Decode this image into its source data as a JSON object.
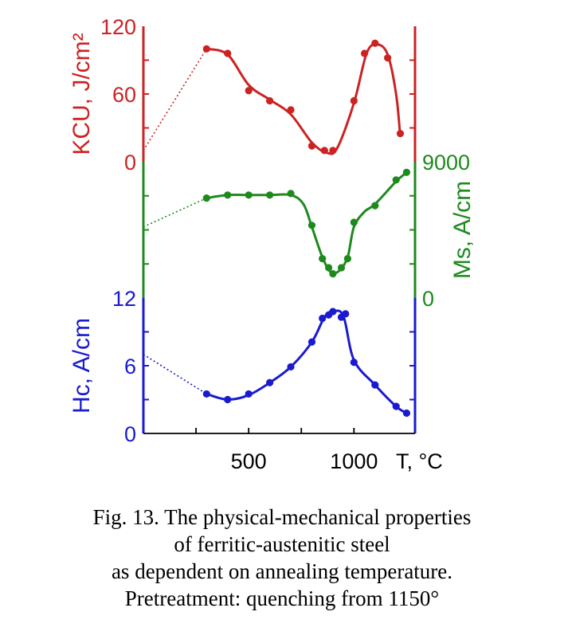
{
  "chart_data": {
    "type": "line",
    "x_axis": {
      "tick_labels": [
        "500",
        "1000"
      ],
      "ticks": [
        500,
        1000
      ],
      "minor_ticks": [
        250,
        500,
        750,
        1000
      ],
      "label": "T, °C",
      "xlim": [
        0,
        1290
      ]
    },
    "panels": [
      {
        "id": "kcu",
        "ylabel": "KCU, J/cm²",
        "ylim": [
          0,
          120
        ],
        "tick_labels": [
          "0",
          "60",
          "120"
        ],
        "ticks": [
          0,
          60,
          120
        ],
        "color": "#cc2222",
        "axis_side": "left",
        "points": [
          [
            300,
            100
          ],
          [
            400,
            96
          ],
          [
            500,
            63
          ],
          [
            600,
            54
          ],
          [
            700,
            46
          ],
          [
            800,
            14
          ],
          [
            860,
            10
          ],
          [
            900,
            10
          ],
          [
            1000,
            54
          ],
          [
            1050,
            96
          ],
          [
            1100,
            105
          ],
          [
            1160,
            92
          ],
          [
            1220,
            25
          ]
        ],
        "curve": [
          [
            300,
            100
          ],
          [
            400,
            95
          ],
          [
            500,
            68
          ],
          [
            600,
            55
          ],
          [
            700,
            42
          ],
          [
            800,
            17
          ],
          [
            870,
            8
          ],
          [
            920,
            12
          ],
          [
            1000,
            52
          ],
          [
            1060,
            96
          ],
          [
            1110,
            104
          ],
          [
            1160,
            95
          ],
          [
            1200,
            60
          ],
          [
            1220,
            22
          ]
        ],
        "extrapolation": [
          [
            0,
            10
          ],
          [
            300,
            100
          ]
        ]
      },
      {
        "id": "ms",
        "ylabel": "Ms, A/cm",
        "ylim": [
          0,
          9000
        ],
        "tick_labels": [
          "0",
          "9000"
        ],
        "ticks": [
          0,
          9000
        ],
        "color": "#1e8a1e",
        "axis_side": "right",
        "points": [
          [
            300,
            6600
          ],
          [
            400,
            6800
          ],
          [
            500,
            6800
          ],
          [
            600,
            6800
          ],
          [
            700,
            6900
          ],
          [
            800,
            4800
          ],
          [
            850,
            2600
          ],
          [
            880,
            2000
          ],
          [
            900,
            1600
          ],
          [
            940,
            2000
          ],
          [
            970,
            2600
          ],
          [
            1000,
            5000
          ],
          [
            1100,
            6100
          ],
          [
            1200,
            7800
          ],
          [
            1250,
            8300
          ]
        ],
        "curve": [
          [
            300,
            6600
          ],
          [
            400,
            6800
          ],
          [
            500,
            6800
          ],
          [
            600,
            6800
          ],
          [
            700,
            6800
          ],
          [
            760,
            6200
          ],
          [
            800,
            4700
          ],
          [
            850,
            2700
          ],
          [
            890,
            1700
          ],
          [
            930,
            1800
          ],
          [
            970,
            2700
          ],
          [
            1000,
            4700
          ],
          [
            1050,
            5700
          ],
          [
            1100,
            6200
          ],
          [
            1200,
            7700
          ],
          [
            1250,
            8300
          ]
        ],
        "extrapolation": [
          [
            0,
            4700
          ],
          [
            300,
            6600
          ]
        ]
      },
      {
        "id": "hc",
        "ylabel": "Hc, A/cm",
        "ylim": [
          0,
          12
        ],
        "tick_labels": [
          "0",
          "6",
          "12"
        ],
        "ticks": [
          0,
          6,
          12
        ],
        "color": "#1a1ad0",
        "axis_side": "left",
        "points": [
          [
            300,
            3.5
          ],
          [
            400,
            3.0
          ],
          [
            500,
            3.5
          ],
          [
            600,
            4.5
          ],
          [
            700,
            5.9
          ],
          [
            800,
            8.1
          ],
          [
            850,
            10.2
          ],
          [
            880,
            10.5
          ],
          [
            900,
            10.8
          ],
          [
            940,
            10.3
          ],
          [
            960,
            10.6
          ],
          [
            1000,
            6.3
          ],
          [
            1100,
            4.3
          ],
          [
            1200,
            2.4
          ],
          [
            1250,
            1.8
          ]
        ],
        "curve": [
          [
            300,
            3.5
          ],
          [
            400,
            3.0
          ],
          [
            500,
            3.4
          ],
          [
            600,
            4.5
          ],
          [
            700,
            5.9
          ],
          [
            800,
            8.1
          ],
          [
            860,
            10.3
          ],
          [
            900,
            10.8
          ],
          [
            950,
            10.4
          ],
          [
            1000,
            6.5
          ],
          [
            1100,
            4.3
          ],
          [
            1200,
            2.4
          ],
          [
            1250,
            1.8
          ]
        ],
        "extrapolation": [
          [
            0,
            7.0
          ],
          [
            300,
            3.5
          ]
        ]
      }
    ]
  },
  "caption": {
    "line1": "Fig. 13. The physical-mechanical properties",
    "line2": "of ferritic-austenitic steel",
    "line3": "as dependent on annealing temperature.",
    "line4": "Pretreatment: quenching from 1150°"
  }
}
